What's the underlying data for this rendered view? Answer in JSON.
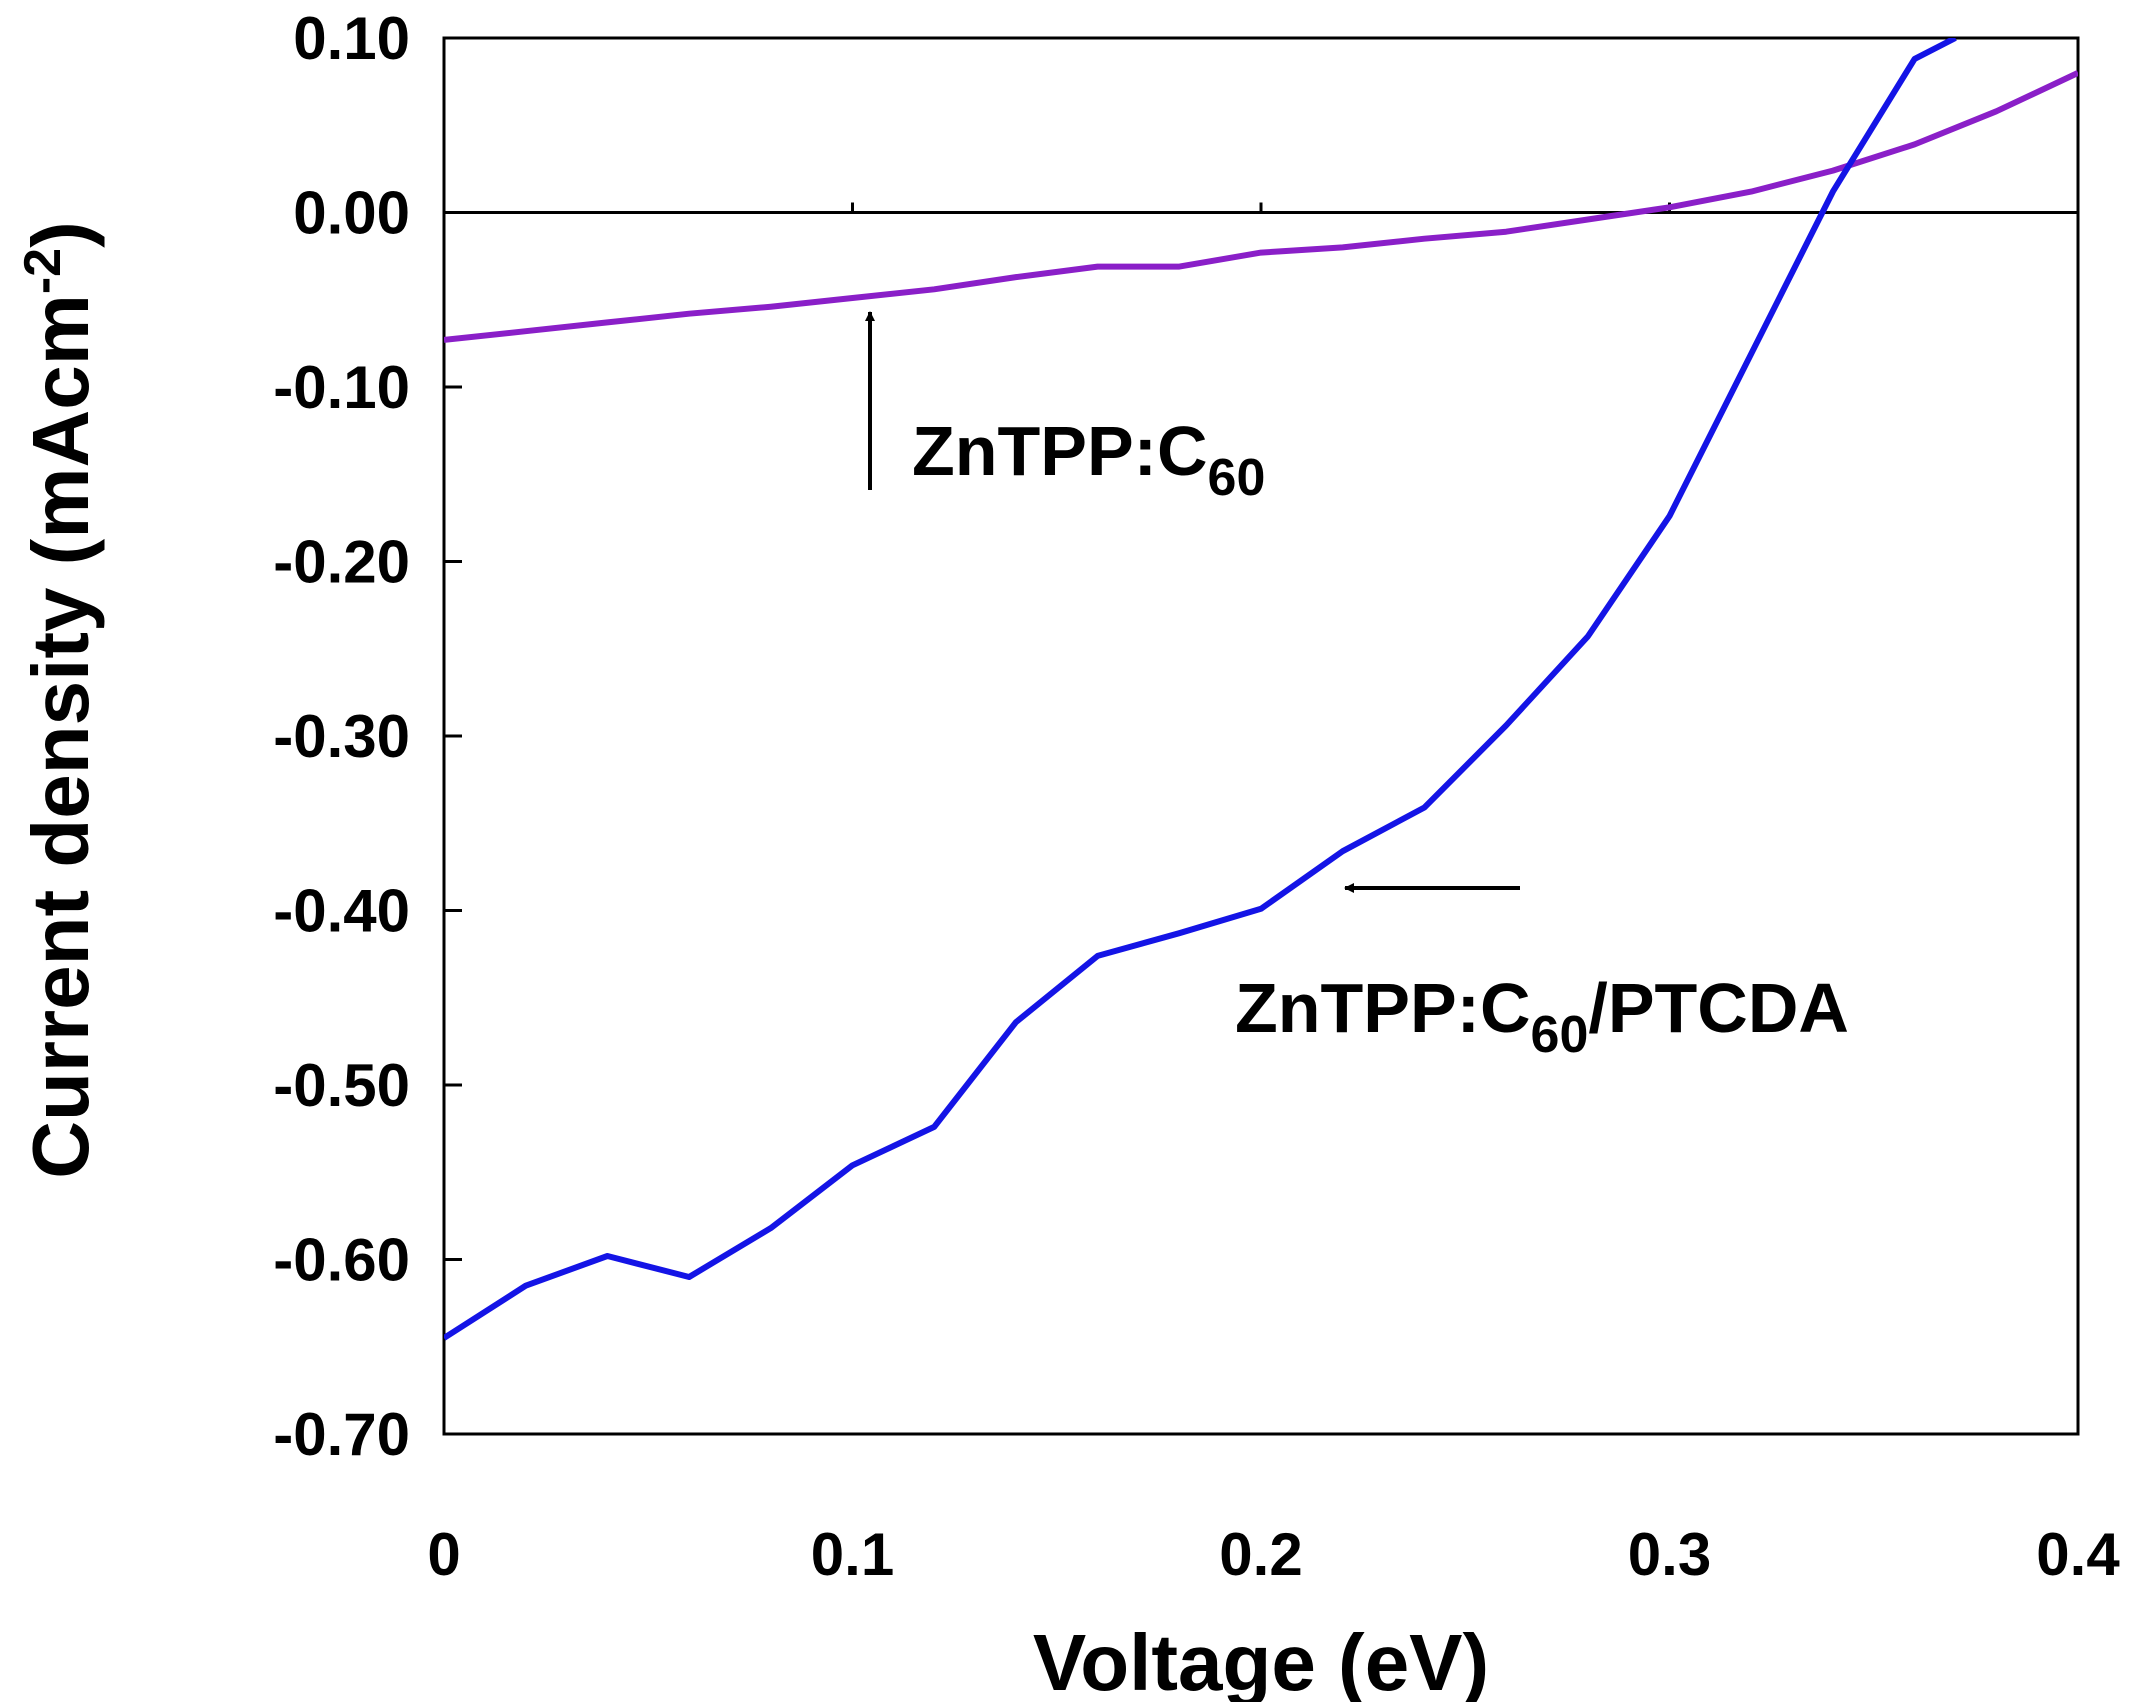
{
  "chart_data": {
    "type": "line",
    "title": "",
    "xlabel": "Voltage (eV)",
    "ylabel": {
      "main": "Current density (mAcm",
      "sup": "-2",
      "close": ")"
    },
    "xlim": [
      0,
      0.4
    ],
    "ylim": [
      -0.7,
      0.1
    ],
    "xticks": [
      0,
      0.1,
      0.2,
      0.3,
      0.4
    ],
    "xtick_labels": [
      "0",
      "0.1",
      "0.2",
      "0.3",
      "0.4"
    ],
    "yticks": [
      0.1,
      0.0,
      -0.1,
      -0.2,
      -0.3,
      -0.4,
      -0.5,
      -0.6,
      -0.7
    ],
    "ytick_labels": [
      "0.10",
      "0.00",
      "-0.10",
      "-0.20",
      "-0.30",
      "-0.40",
      "-0.50",
      "-0.60",
      "-0.70"
    ],
    "grid": false,
    "zero_line": true,
    "series": [
      {
        "name": "ZnTPP:C60",
        "color": "#8a1fc8",
        "x": [
          0,
          0.02,
          0.04,
          0.06,
          0.08,
          0.1,
          0.12,
          0.14,
          0.16,
          0.18,
          0.2,
          0.22,
          0.24,
          0.26,
          0.28,
          0.3,
          0.32,
          0.34,
          0.36,
          0.38,
          0.4
        ],
        "values": [
          -0.073,
          -0.068,
          -0.063,
          -0.058,
          -0.054,
          -0.049,
          -0.044,
          -0.037,
          -0.031,
          -0.031,
          -0.023,
          -0.02,
          -0.015,
          -0.011,
          -0.004,
          0.003,
          0.012,
          0.024,
          0.039,
          0.058,
          0.08
        ]
      },
      {
        "name": "ZnTPP:C60/PTCDA",
        "color": "#1414e6",
        "x": [
          0,
          0.02,
          0.04,
          0.06,
          0.08,
          0.1,
          0.12,
          0.14,
          0.16,
          0.18,
          0.2,
          0.22,
          0.24,
          0.26,
          0.28,
          0.3,
          0.32,
          0.34,
          0.36,
          0.37
        ],
        "values": [
          -0.645,
          -0.615,
          -0.598,
          -0.61,
          -0.582,
          -0.546,
          -0.524,
          -0.464,
          -0.426,
          -0.413,
          -0.399,
          -0.366,
          -0.341,
          -0.294,
          -0.243,
          -0.174,
          -0.081,
          0.012,
          0.088,
          0.1
        ]
      }
    ],
    "annotations": [
      {
        "text_main": "ZnTPP:C",
        "text_sub": "60",
        "text_tail": "",
        "points_to": "ZnTPP:C60 curve near x=0.105"
      },
      {
        "text_main": "ZnTPP:C",
        "text_sub": "60",
        "text_tail": "/PTCDA",
        "points_to": "ZnTPP:C60/PTCDA curve near x=0.22"
      }
    ]
  }
}
